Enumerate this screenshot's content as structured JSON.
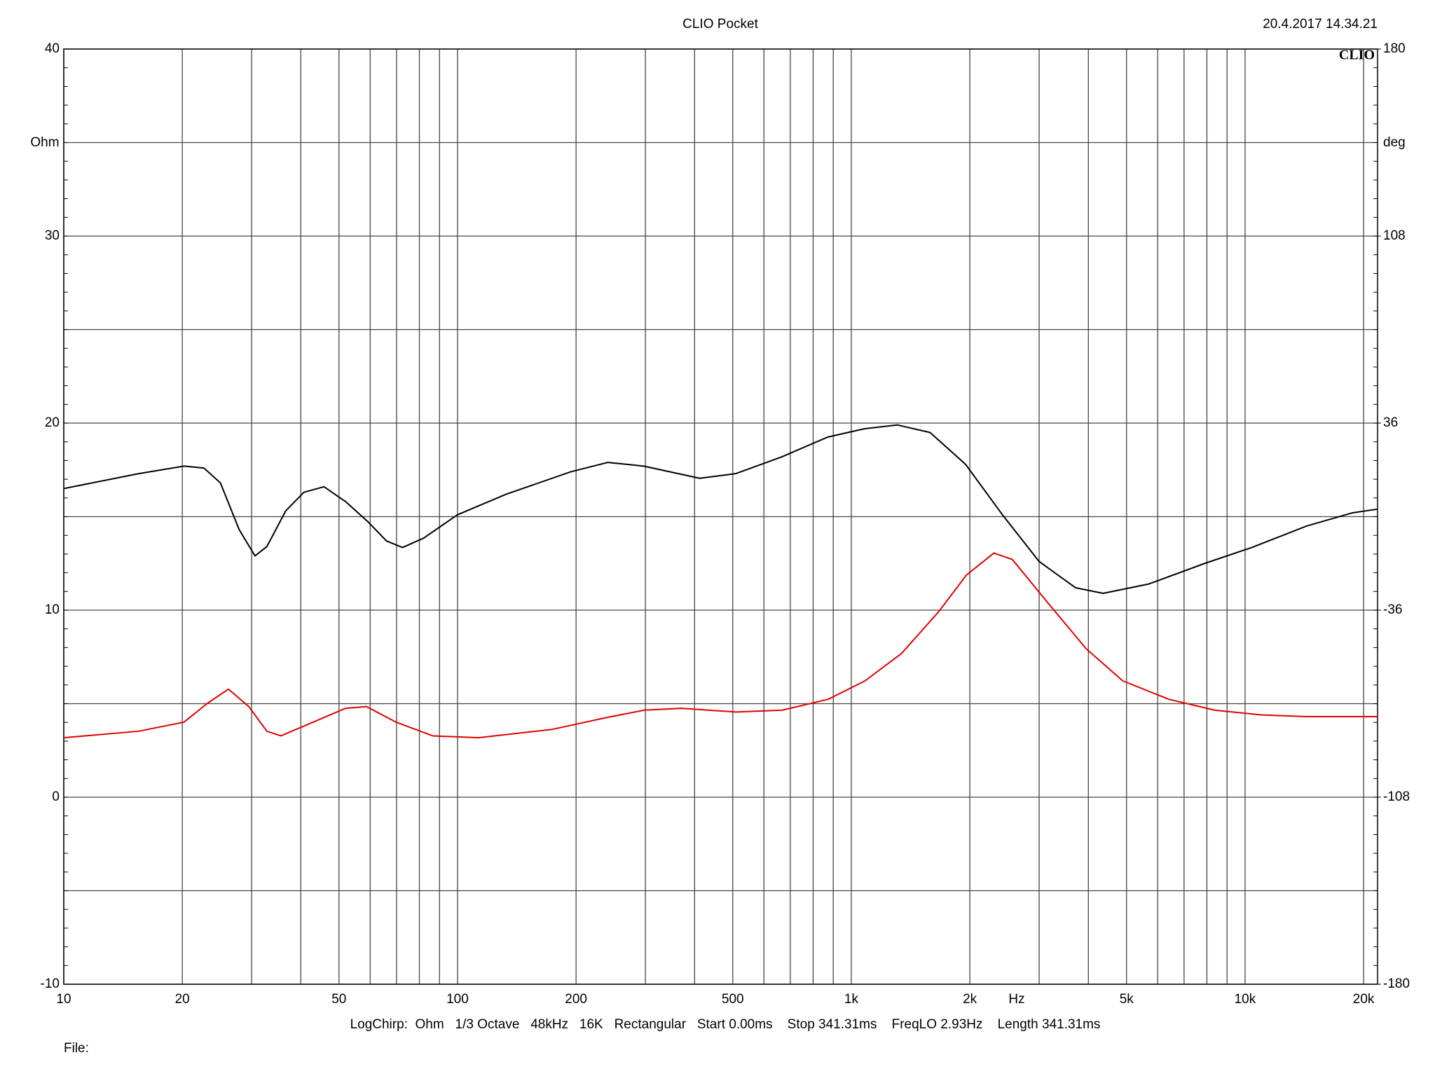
{
  "chart_data": {
    "type": "line",
    "title": "CLIO Pocket",
    "date": "20.4.2017 14.34.21",
    "logo": "CLIO",
    "ylabel": "Ohm",
    "y2label": "deg",
    "xlabel": "Hz",
    "footer": "LogChirp:  Ohm   1/3 Octave   48kHz   16K   Rectangular   Start 0.00ms    Stop 341.31ms    FreqLO 2.93Hz    Length 341.31ms",
    "file_label": "File:",
    "xscale": "log",
    "xlim": [
      10,
      21700
    ],
    "xticks": [
      10,
      20,
      50,
      100,
      200,
      500,
      {
        "value": 1000,
        "label": "1k"
      },
      {
        "value": 2000,
        "label": "2k"
      },
      {
        "value": 5000,
        "label": "5k"
      },
      {
        "value": 10000,
        "label": "10k"
      },
      {
        "value": 20000,
        "label": "20k"
      }
    ],
    "xminor": [
      30,
      40,
      60,
      70,
      80,
      90,
      300,
      400,
      600,
      700,
      800,
      900,
      3000,
      4000,
      6000,
      7000,
      8000,
      9000
    ],
    "ylim": [
      -10,
      40
    ],
    "yticks": [
      -10,
      0,
      10,
      20,
      30,
      40
    ],
    "yminor": [
      -5,
      5,
      15,
      25,
      35
    ],
    "y2lim": [
      -180,
      180
    ],
    "y2ticks": [
      -180,
      -108,
      -36,
      36,
      108,
      180
    ],
    "grid": true,
    "series": [
      {
        "color": "#000000",
        "x": [
          10,
          15.5,
          20.2,
          22.7,
          25,
          27.9,
          30.6,
          32.8,
          36.6,
          40.7,
          45.8,
          52,
          59.4,
          66,
          72.5,
          82,
          100,
          133,
          194,
          241,
          297,
          412,
          509,
          667,
          870,
          1081,
          1310,
          1585,
          1950,
          2420,
          3000,
          3710,
          4360,
          5700,
          7900,
          10400,
          14350,
          18700,
          21700
        ],
        "values": [
          16.5,
          17.3,
          17.7,
          17.6,
          16.8,
          14.3,
          12.9,
          13.4,
          15.3,
          16.3,
          16.6,
          15.8,
          14.7,
          13.7,
          13.35,
          13.85,
          15.1,
          16.2,
          17.4,
          17.9,
          17.7,
          17.05,
          17.3,
          18.2,
          19.25,
          19.7,
          19.9,
          19.5,
          17.8,
          15.1,
          12.6,
          11.2,
          10.9,
          11.4,
          12.5,
          13.35,
          14.5,
          15.2,
          15.4
        ]
      },
      {
        "color": "#e00000",
        "axis": "y2",
        "x": [
          10,
          15.5,
          20.2,
          23.1,
          26.2,
          29.5,
          32.8,
          35.6,
          43,
          51.9,
          58.7,
          69.8,
          86.5,
          113,
          174,
          240,
          298,
          370,
          510,
          668,
          874,
          1084,
          1343,
          1667,
          1960,
          2303,
          2565,
          3014,
          3945,
          4890,
          6400,
          8370,
          10960,
          14350,
          21700
        ],
        "values": [
          -85.1,
          -82.6,
          -79.1,
          -72,
          -66.4,
          -73.1,
          -82.6,
          -84.4,
          -79.1,
          -73.8,
          -73.1,
          -79.1,
          -84.4,
          -85.1,
          -81.9,
          -77.3,
          -74.5,
          -73.8,
          -75.2,
          -74.5,
          -70.3,
          -63.2,
          -52.6,
          -36.6,
          -22.5,
          -14.0,
          -16.5,
          -29.5,
          -50.8,
          -63.2,
          -70.3,
          -74.5,
          -76.3,
          -77,
          -77
        ]
      }
    ]
  }
}
